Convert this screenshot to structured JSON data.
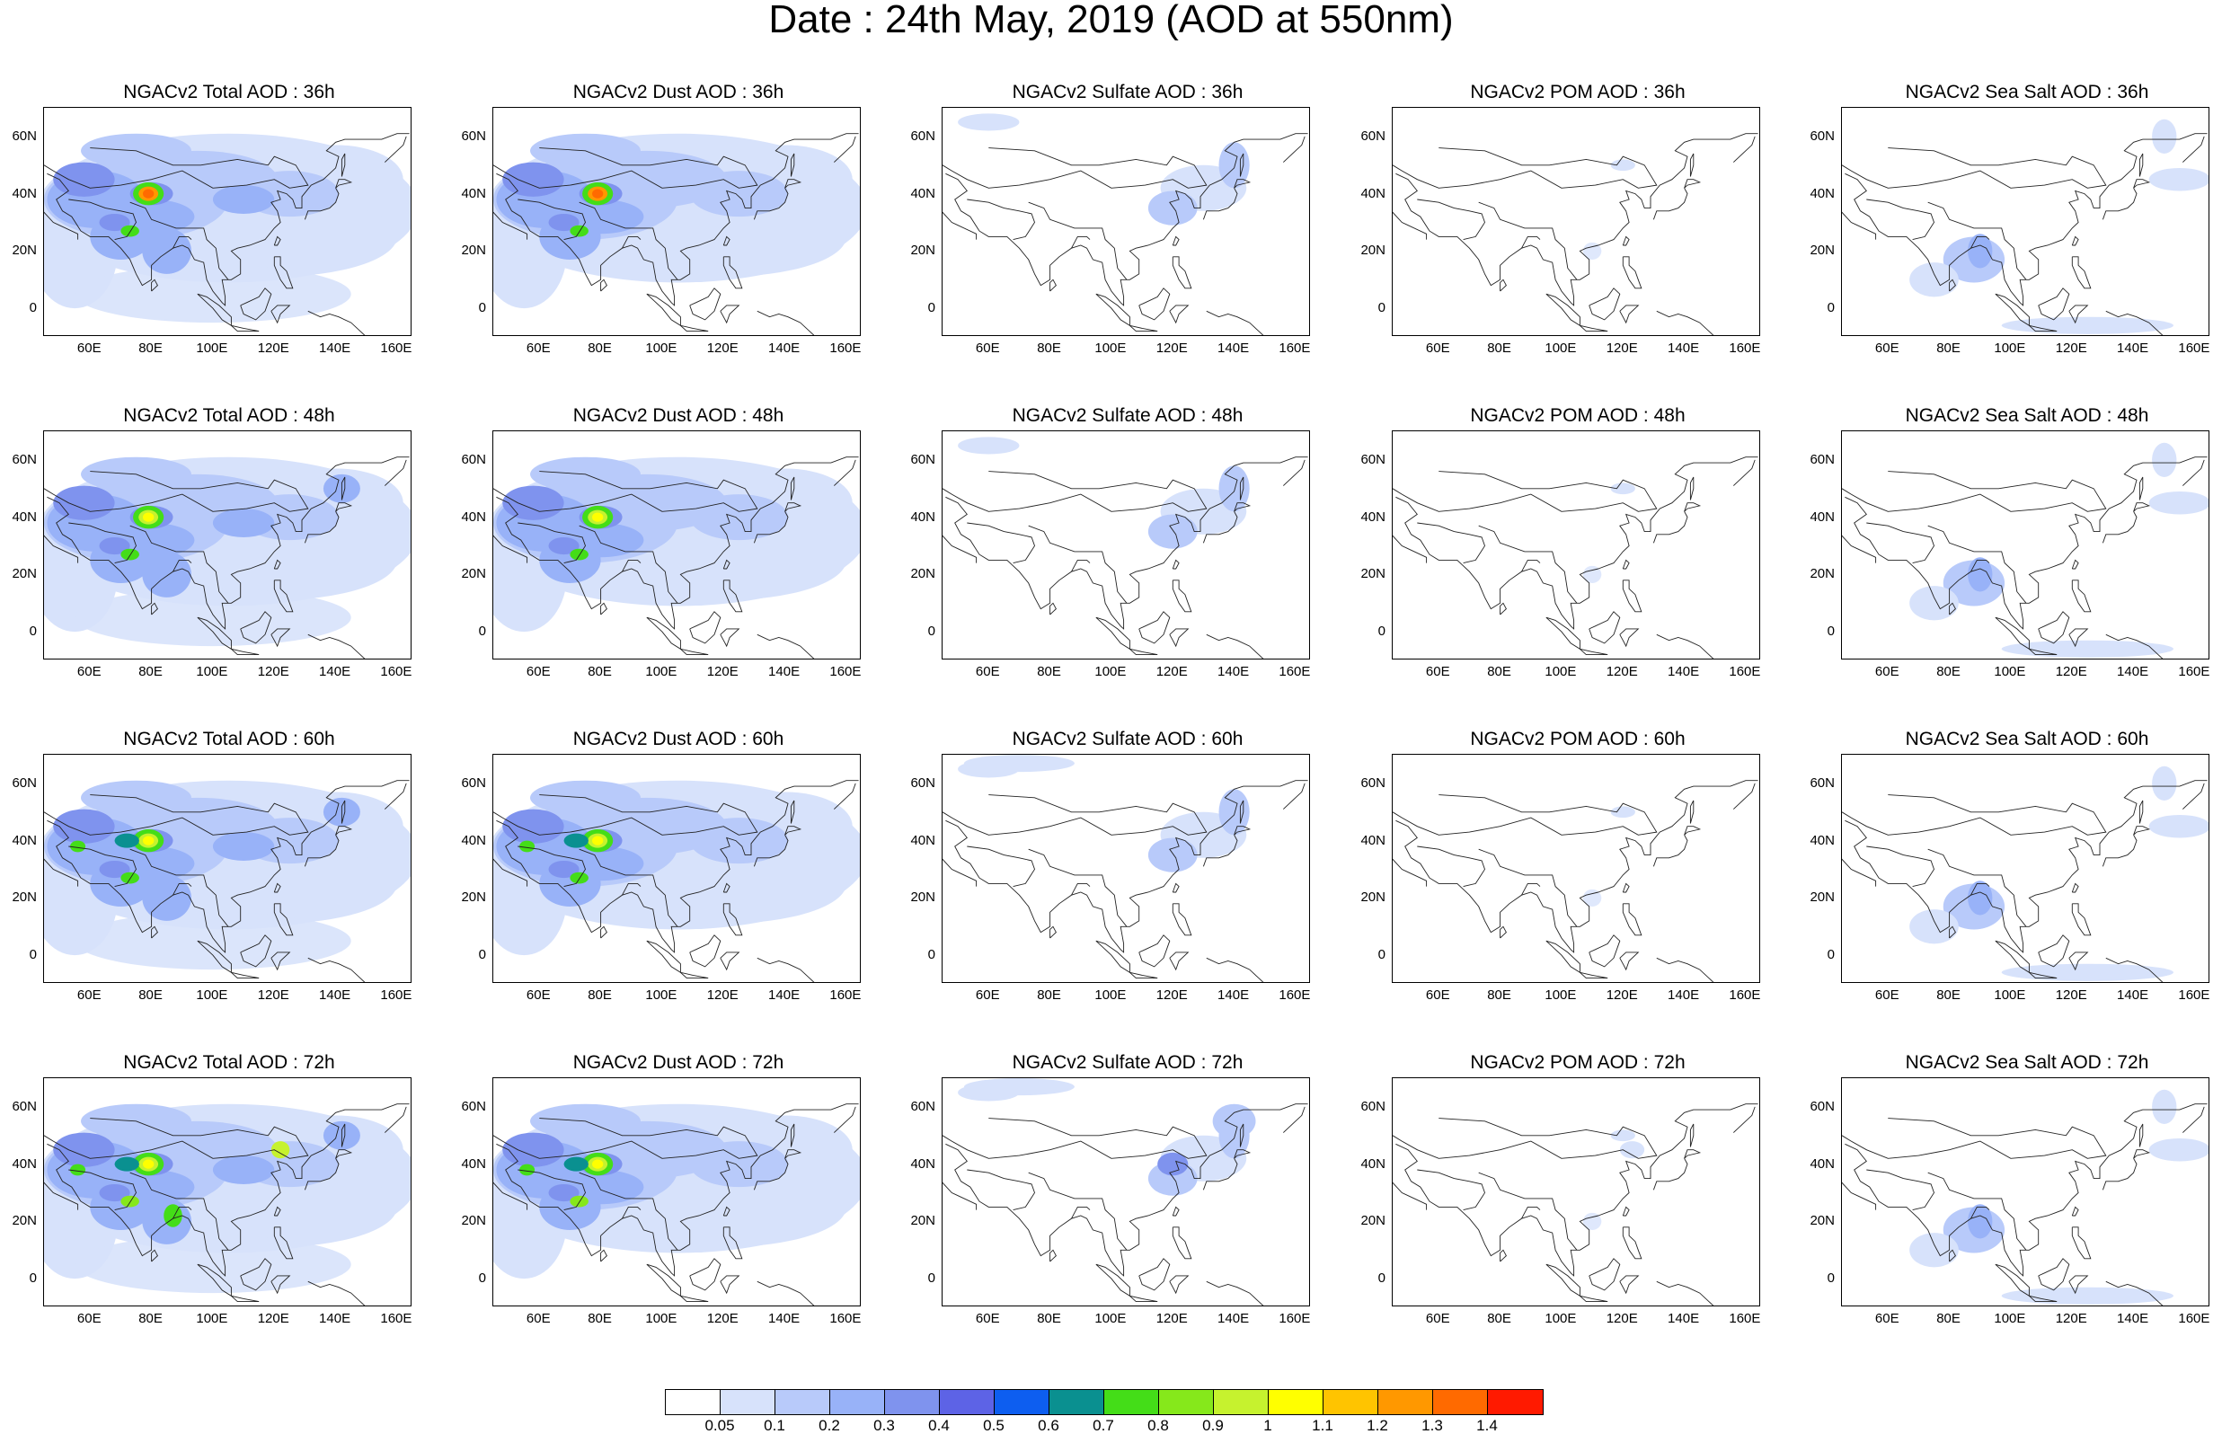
{
  "title": "Date : 24th May, 2019 (AOD at 550nm)",
  "panels": [
    [
      "NGACv2 Total AOD : 36h",
      "NGACv2 Dust AOD : 36h",
      "NGACv2 Sulfate AOD : 36h",
      "NGACv2 POM AOD : 36h",
      "NGACv2 Sea Salt AOD : 36h"
    ],
    [
      "NGACv2 Total AOD : 48h",
      "NGACv2 Dust AOD : 48h",
      "NGACv2 Sulfate AOD : 48h",
      "NGACv2 POM AOD : 48h",
      "NGACv2 Sea Salt AOD : 48h"
    ],
    [
      "NGACv2 Total AOD : 60h",
      "NGACv2 Dust AOD : 60h",
      "NGACv2 Sulfate AOD : 60h",
      "NGACv2 POM AOD : 60h",
      "NGACv2 Sea Salt AOD : 60h"
    ],
    [
      "NGACv2 Total AOD : 72h",
      "NGACv2 Dust AOD : 72h",
      "NGACv2 Sulfate AOD : 72h",
      "NGACv2 POM AOD : 72h",
      "NGACv2 Sea Salt  AOD : 72h"
    ]
  ],
  "latitude_labels": [
    "60N",
    "40N",
    "20N",
    "0"
  ],
  "longitude_labels": [
    "60E",
    "80E",
    "100E",
    "120E",
    "140E",
    "160E"
  ],
  "colorbar": {
    "labels": [
      "0.05",
      "0.1",
      "0.2",
      "0.3",
      "0.4",
      "0.5",
      "0.6",
      "0.7",
      "0.8",
      "0.9",
      "1",
      "1.1",
      "1.2",
      "1.3",
      "1.4"
    ],
    "colors": [
      "#ffffff",
      "#d7e2fb",
      "#b8cafa",
      "#98b2f8",
      "#7f93ee",
      "#5d63e6",
      "#0d5ef0",
      "#0a9090",
      "#44dd18",
      "#86e81b",
      "#c6f22e",
      "#ffff00",
      "#ffc400",
      "#ff9800",
      "#ff6a00",
      "#ff1a00"
    ]
  }
}
